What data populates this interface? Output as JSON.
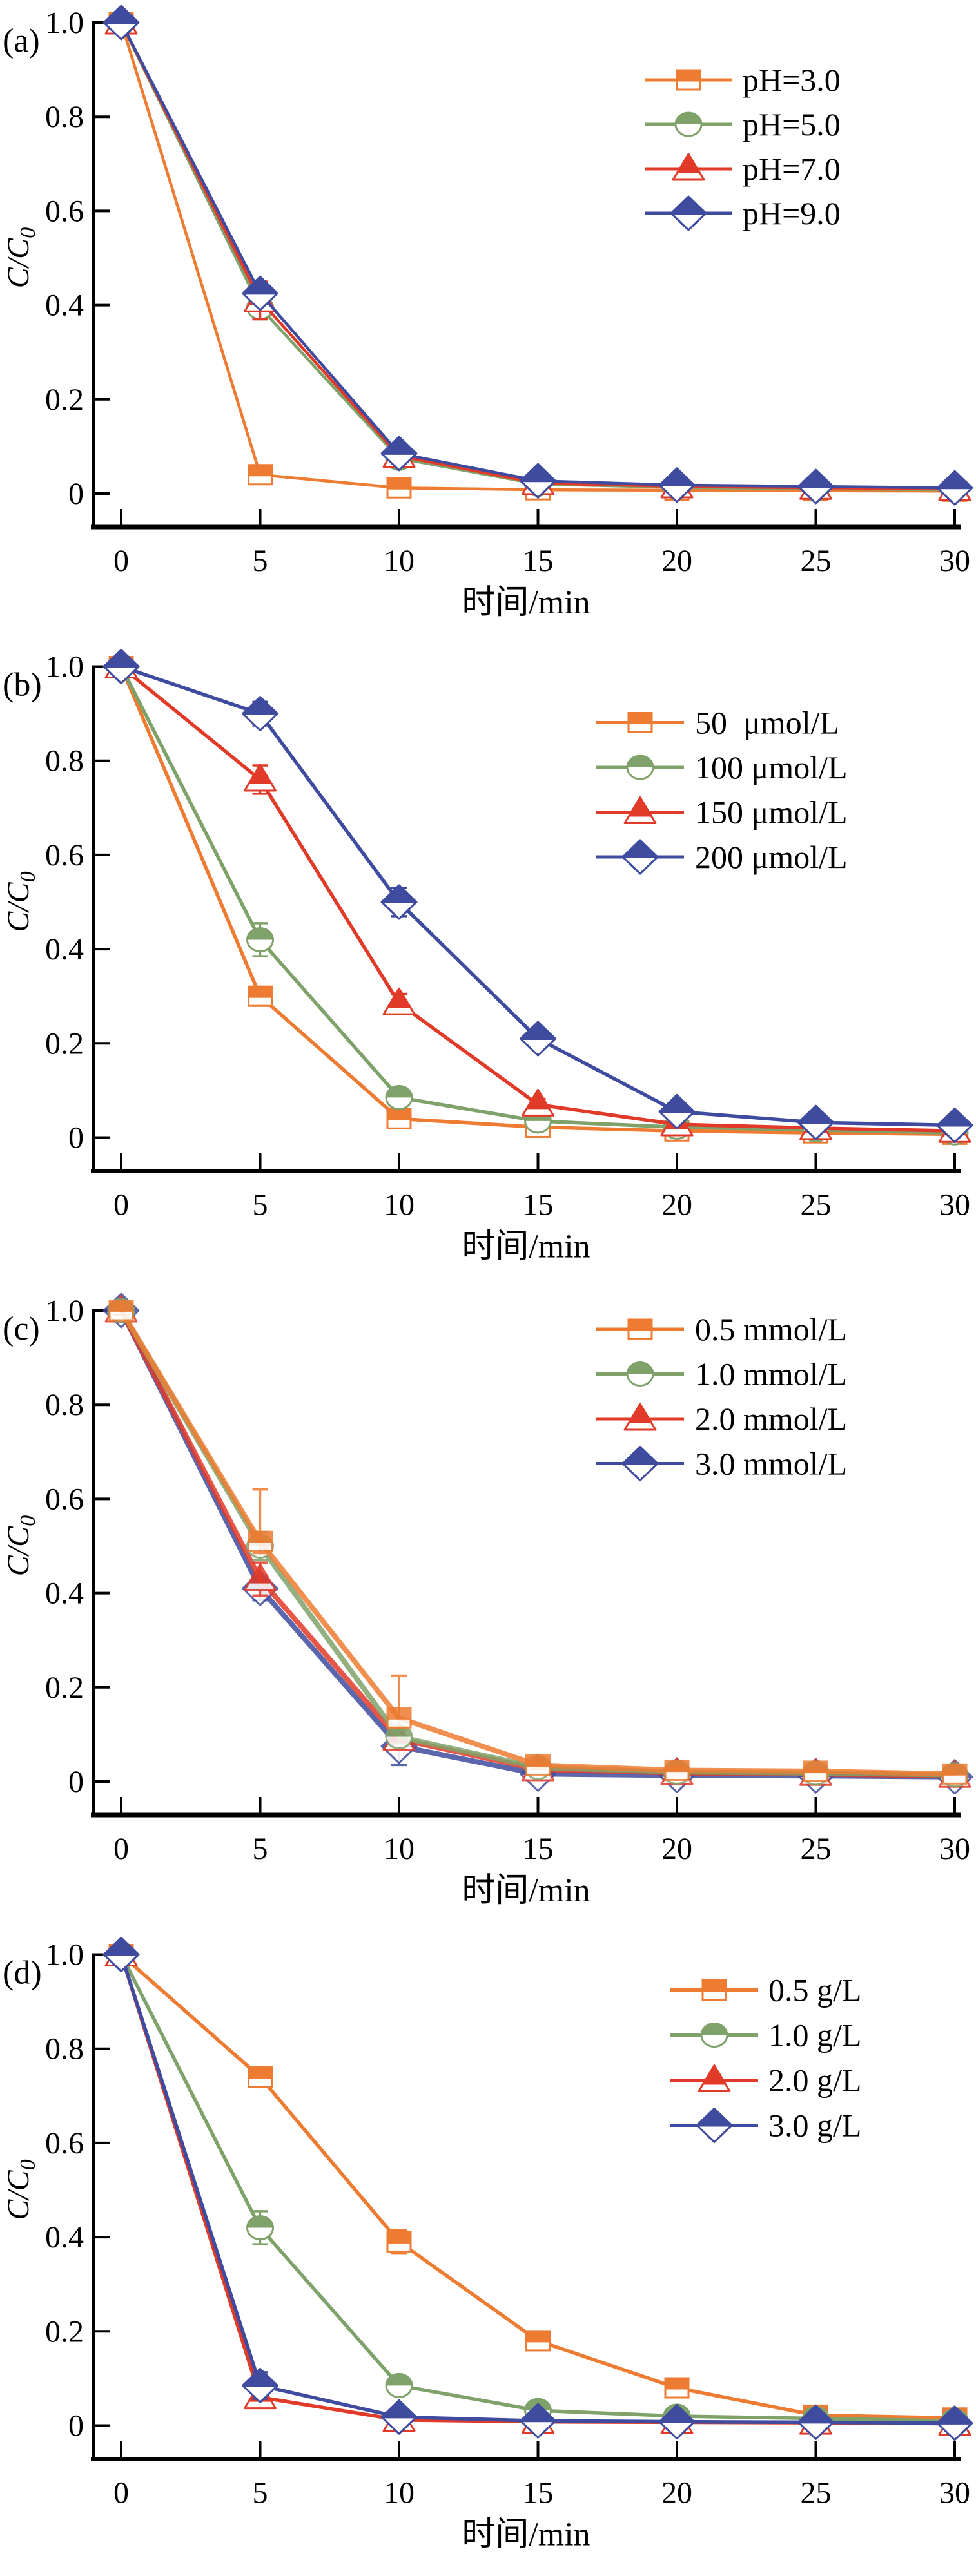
{
  "figure": {
    "background": "#ffffff",
    "axis_color": "#000000",
    "palette": {
      "orange": "#ED7B31",
      "green": "#7FA26A",
      "red": "#E23A28",
      "blue": "#3F4B9E"
    }
  },
  "chart_data": [
    {
      "type": "line",
      "panel_label": "(a)",
      "xlabel": "时间/min",
      "ylabel_main": "C/C",
      "ylabel_sub": "0",
      "x": [
        0,
        5,
        10,
        15,
        20,
        25,
        30
      ],
      "xticks": [
        "0",
        "5",
        "10",
        "15",
        "20",
        "25",
        "30"
      ],
      "ytick_values": [
        1.0,
        0.8,
        0.6,
        0.4,
        0.2,
        0
      ],
      "yticks": [
        "1.0",
        "0.8",
        "0.6",
        "0.4",
        "0.2",
        "0"
      ],
      "ylim": [
        0,
        1.0
      ],
      "xlim": [
        0,
        30
      ],
      "grid": false,
      "legend_position": "top-right",
      "series": [
        {
          "name": "pH=3.0",
          "marker": "square",
          "color": "#ED7B31",
          "values": [
            1.0,
            0.04,
            0.012,
            0.008,
            0.007,
            0.006,
            0.005
          ],
          "errors": [
            0.012,
            0.015,
            0.006,
            0.004,
            0.004,
            0.003,
            0.003
          ]
        },
        {
          "name": "pH=5.0",
          "marker": "circle",
          "color": "#7FA26A",
          "values": [
            1.0,
            0.395,
            0.075,
            0.02,
            0.013,
            0.01,
            0.008
          ],
          "errors": [
            0.01,
            0.025,
            0.012,
            0.006,
            0.004,
            0.004,
            0.003
          ]
        },
        {
          "name": "pH=7.0",
          "marker": "triangle",
          "color": "#E23A28",
          "values": [
            1.0,
            0.41,
            0.08,
            0.022,
            0.015,
            0.012,
            0.01
          ],
          "errors": [
            0.01,
            0.04,
            0.015,
            0.008,
            0.005,
            0.004,
            0.004
          ]
        },
        {
          "name": "pH=9.0",
          "marker": "diamond",
          "color": "#3F4B9E",
          "values": [
            1.0,
            0.425,
            0.085,
            0.027,
            0.018,
            0.015,
            0.012
          ],
          "errors": [
            0.008,
            0.02,
            0.012,
            0.008,
            0.005,
            0.004,
            0.004
          ]
        }
      ]
    },
    {
      "type": "line",
      "panel_label": "(b)",
      "xlabel": "时间/min",
      "ylabel_main": "C/C",
      "ylabel_sub": "0",
      "x": [
        0,
        5,
        10,
        15,
        20,
        25,
        30
      ],
      "xticks": [
        "0",
        "5",
        "10",
        "15",
        "20",
        "25",
        "30"
      ],
      "ytick_values": [
        1.0,
        0.8,
        0.6,
        0.4,
        0.2,
        0
      ],
      "yticks": [
        "1.0",
        "0.8",
        "0.6",
        "0.4",
        "0.2",
        "0"
      ],
      "ylim": [
        0,
        1.0
      ],
      "xlim": [
        0,
        30
      ],
      "grid": false,
      "legend_position": "top-right",
      "series": [
        {
          "name": "50  μmol/L",
          "marker": "square",
          "color": "#ED7B31",
          "values": [
            1.0,
            0.3,
            0.04,
            0.022,
            0.014,
            0.01,
            0.007
          ],
          "errors": [
            0.01,
            0.02,
            0.01,
            0.006,
            0.005,
            0.004,
            0.003
          ]
        },
        {
          "name": "100 μmol/L",
          "marker": "circle",
          "color": "#7FA26A",
          "values": [
            1.0,
            0.42,
            0.085,
            0.035,
            0.022,
            0.016,
            0.01
          ],
          "errors": [
            0.01,
            0.035,
            0.012,
            0.008,
            0.005,
            0.004,
            0.004
          ]
        },
        {
          "name": "150 μmol/L",
          "marker": "triangle",
          "color": "#E23A28",
          "values": [
            1.0,
            0.76,
            0.285,
            0.07,
            0.028,
            0.02,
            0.014
          ],
          "errors": [
            0.01,
            0.03,
            0.02,
            0.012,
            0.006,
            0.005,
            0.004
          ]
        },
        {
          "name": "200 μmol/L",
          "marker": "diamond",
          "color": "#3F4B9E",
          "values": [
            1.0,
            0.9,
            0.5,
            0.21,
            0.055,
            0.032,
            0.026
          ],
          "errors": [
            0.008,
            0.025,
            0.03,
            0.02,
            0.01,
            0.006,
            0.005
          ]
        }
      ]
    },
    {
      "type": "line",
      "panel_label": "(c)",
      "xlabel": "时间/min",
      "ylabel_main": "C/C",
      "ylabel_sub": "0",
      "x": [
        0,
        5,
        10,
        15,
        20,
        25,
        30
      ],
      "xticks": [
        "0",
        "5",
        "10",
        "15",
        "20",
        "25",
        "30"
      ],
      "ytick_values": [
        1.0,
        0.8,
        0.6,
        0.4,
        0.2,
        0
      ],
      "yticks": [
        "1.0",
        "0.8",
        "0.6",
        "0.4",
        "0.2",
        "0"
      ],
      "ylim": [
        0,
        1.0
      ],
      "xlim": [
        0,
        30
      ],
      "grid": false,
      "legend_position": "top-right",
      "series": [
        {
          "name": "0.5 mmol/L",
          "marker": "square",
          "color": "#ED7B31",
          "values": [
            1.0,
            0.51,
            0.135,
            0.035,
            0.024,
            0.022,
            0.016
          ],
          "errors_up": [
            0.01,
            0.11,
            0.09,
            0.012,
            0.006,
            0.005,
            0.004
          ],
          "errors_down": [
            0.01,
            0.025,
            0.02,
            0.008,
            0.005,
            0.004,
            0.003
          ]
        },
        {
          "name": "1.0 mmol/L",
          "marker": "circle",
          "color": "#7FA26A",
          "values": [
            1.0,
            0.5,
            0.095,
            0.03,
            0.02,
            0.018,
            0.014
          ],
          "errors": [
            0.01,
            0.03,
            0.015,
            0.008,
            0.005,
            0.004,
            0.004
          ]
        },
        {
          "name": "2.0 mmol/L",
          "marker": "triangle",
          "color": "#E23A28",
          "values": [
            1.0,
            0.43,
            0.09,
            0.026,
            0.018,
            0.016,
            0.012
          ],
          "errors": [
            0.012,
            0.035,
            0.02,
            0.008,
            0.005,
            0.004,
            0.004
          ]
        },
        {
          "name": "3.0 mmol/L",
          "marker": "diamond",
          "color": "#3F4B9E",
          "values": [
            1.0,
            0.41,
            0.075,
            0.016,
            0.013,
            0.012,
            0.01
          ],
          "errors_up": [
            0.01,
            0.025,
            0.015,
            0.008,
            0.005,
            0.004,
            0.003
          ],
          "errors_down": [
            0.01,
            0.025,
            0.04,
            0.008,
            0.005,
            0.004,
            0.003
          ]
        }
      ]
    },
    {
      "type": "line",
      "panel_label": "(d)",
      "xlabel": "时间/min",
      "ylabel_main": "C/C",
      "ylabel_sub": "0",
      "x": [
        0,
        5,
        10,
        15,
        20,
        25,
        30
      ],
      "xticks": [
        "0",
        "5",
        "10",
        "15",
        "20",
        "25",
        "30"
      ],
      "ytick_values": [
        1.0,
        0.8,
        0.6,
        0.4,
        0.2,
        0
      ],
      "yticks": [
        "1.0",
        "0.8",
        "0.6",
        "0.4",
        "0.2",
        "0"
      ],
      "ylim": [
        0,
        1.0
      ],
      "xlim": [
        0,
        30
      ],
      "grid": false,
      "legend_position": "top-right",
      "series": [
        {
          "name": "0.5 g/L",
          "marker": "square",
          "color": "#ED7B31",
          "values": [
            1.0,
            0.74,
            0.39,
            0.18,
            0.08,
            0.022,
            0.016
          ],
          "errors": [
            0.008,
            0.02,
            0.025,
            0.015,
            0.01,
            0.006,
            0.005
          ]
        },
        {
          "name": "1.0 g/L",
          "marker": "circle",
          "color": "#7FA26A",
          "values": [
            1.0,
            0.42,
            0.085,
            0.032,
            0.02,
            0.015,
            0.01
          ],
          "errors": [
            0.01,
            0.035,
            0.015,
            0.008,
            0.005,
            0.004,
            0.004
          ]
        },
        {
          "name": "2.0 g/L",
          "marker": "triangle",
          "color": "#E23A28",
          "values": [
            1.0,
            0.06,
            0.012,
            0.008,
            0.007,
            0.006,
            0.004
          ],
          "errors": [
            0.012,
            0.02,
            0.008,
            0.005,
            0.004,
            0.003,
            0.003
          ]
        },
        {
          "name": "3.0 g/L",
          "marker": "diamond",
          "color": "#3F4B9E",
          "values": [
            1.0,
            0.085,
            0.018,
            0.01,
            0.008,
            0.007,
            0.005
          ],
          "errors": [
            0.008,
            0.028,
            0.01,
            0.006,
            0.004,
            0.003,
            0.003
          ]
        }
      ]
    }
  ]
}
